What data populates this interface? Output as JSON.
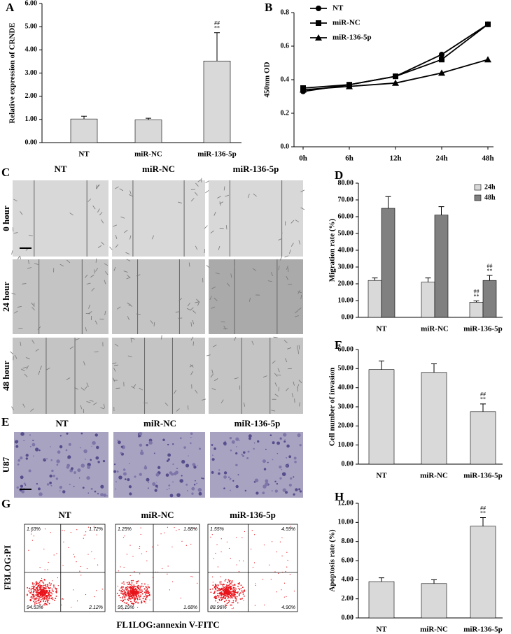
{
  "chart_data": [
    {
      "type": "bar",
      "panel": "A",
      "y_label": "Relative expression of CRNDE",
      "categories": [
        "NT",
        "miR-NC",
        "miR-136-5p"
      ],
      "series": [
        {
          "color": "#d9d9d9",
          "values": [
            1.02,
            0.98,
            3.52
          ],
          "errors": [
            0.12,
            0.07,
            1.22
          ],
          "marks": [
            null,
            null,
            [
              "##",
              "**"
            ]
          ]
        }
      ],
      "ylim": [
        0,
        6
      ],
      "yticks": [
        {
          "value": 0,
          "label": "0.00"
        },
        {
          "value": 1,
          "label": "1.00"
        },
        {
          "value": 2,
          "label": "2.00"
        },
        {
          "value": 3,
          "label": "3.00"
        },
        {
          "value": 4,
          "label": "4.00"
        },
        {
          "value": 5,
          "label": "5.00"
        },
        {
          "value": 6,
          "label": "6.00"
        }
      ]
    },
    {
      "type": "line",
      "panel": "B",
      "y_label": "450nm OD",
      "categories": [
        "0h",
        "6h",
        "12h",
        "24h",
        "48h"
      ],
      "series": [
        {
          "name": "NT",
          "color": "#000000",
          "marker": "circle",
          "values": [
            0.33,
            0.37,
            0.42,
            0.55,
            0.73
          ]
        },
        {
          "name": "miR-NC",
          "color": "#000000",
          "marker": "square",
          "values": [
            0.35,
            0.37,
            0.42,
            0.52,
            0.73
          ]
        },
        {
          "name": "miR-136-5p",
          "color": "#000000",
          "marker": "triangle",
          "values": [
            0.34,
            0.36,
            0.38,
            0.44,
            0.52
          ]
        }
      ],
      "ylim": [
        0,
        0.8
      ],
      "yticks": [
        {
          "value": 0,
          "label": "0.0"
        },
        0.2,
        0.4,
        0.6,
        0.8
      ],
      "legend": "upper left"
    },
    {
      "type": "bar",
      "panel": "D",
      "y_label": "Migration rate (%)",
      "categories": [
        "NT",
        "miR-NC",
        "miR-136-5p"
      ],
      "series": [
        {
          "name": "24h",
          "color": "#d9d9d9",
          "values": [
            22,
            21,
            9
          ],
          "errors": [
            1.5,
            2.5,
            0.8
          ],
          "marks": [
            null,
            null,
            [
              "##",
              "**"
            ]
          ]
        },
        {
          "name": "48h",
          "color": "#808080",
          "values": [
            65,
            61,
            22
          ],
          "errors": [
            7,
            5,
            3
          ],
          "marks": [
            null,
            null,
            [
              "##",
              "**"
            ]
          ]
        }
      ],
      "ylim": [
        0,
        80
      ],
      "yticks": [
        {
          "value": 0,
          "label": "0.00"
        },
        {
          "value": 10,
          "label": "10.00"
        },
        {
          "value": 20,
          "label": "20.00"
        },
        {
          "value": 30,
          "label": "30.00"
        },
        {
          "value": 40,
          "label": "40.00"
        },
        {
          "value": 50,
          "label": "50.00"
        },
        {
          "value": 60,
          "label": "60.00"
        },
        {
          "value": 70,
          "label": "70.00"
        },
        {
          "value": 80,
          "label": "80.00"
        }
      ],
      "legend": "upper right"
    },
    {
      "type": "bar",
      "panel": "F",
      "y_label": "Cell number of  invasion",
      "categories": [
        "NT",
        "miR-NC",
        "miR-136-5p"
      ],
      "series": [
        {
          "color": "#d9d9d9",
          "values": [
            49.5,
            48,
            27.5
          ],
          "errors": [
            4.5,
            4.5,
            4
          ],
          "marks": [
            null,
            null,
            [
              "##",
              "**"
            ]
          ]
        }
      ],
      "ylim": [
        0,
        60
      ],
      "yticks": [
        {
          "value": 0,
          "label": "0.00"
        },
        {
          "value": 10,
          "label": "10.00"
        },
        {
          "value": 20,
          "label": "20.00"
        },
        {
          "value": 30,
          "label": "30.00"
        },
        {
          "value": 40,
          "label": "40.00"
        },
        {
          "value": 50,
          "label": "50.00"
        },
        {
          "value": 60,
          "label": "60.00"
        }
      ]
    },
    {
      "type": "bar",
      "panel": "H",
      "y_label": "Apoptosis rate (%)",
      "categories": [
        "NT",
        "miR-NC",
        "miR-136-5p"
      ],
      "series": [
        {
          "color": "#d9d9d9",
          "values": [
            3.8,
            3.6,
            9.6
          ],
          "errors": [
            0.4,
            0.4,
            0.9
          ],
          "marks": [
            null,
            null,
            [
              "##",
              "**"
            ]
          ]
        }
      ],
      "ylim": [
        0,
        12
      ],
      "yticks": [
        {
          "value": 0,
          "label": "0.00"
        },
        {
          "value": 2,
          "label": "2.00"
        },
        {
          "value": 4,
          "label": "4.00"
        },
        {
          "value": 6,
          "label": "6.00"
        },
        {
          "value": 8,
          "label": "8.00"
        },
        {
          "value": 10,
          "label": "10.00"
        },
        {
          "value": 12,
          "label": "12.00"
        }
      ]
    }
  ],
  "panels": {
    "C": {
      "letter": "C",
      "columns": [
        "NT",
        "miR-NC",
        "miR-136-5p"
      ],
      "rows": [
        "0 hour",
        "24 hour",
        "48 hour"
      ]
    },
    "E": {
      "letter": "E",
      "columns": [
        "NT",
        "miR-NC",
        "miR-136-5p"
      ],
      "row": "U87"
    },
    "G": {
      "letter": "G",
      "columns": [
        "NT",
        "miR-NC",
        "miR-136-5p"
      ],
      "y_label": "Fl3LOG:PI",
      "x_label": "FL1LOG:annexin V-FITC",
      "quadrants": [
        [
          "1.63%",
          "1.72%",
          "94.53%",
          "2.12%"
        ],
        [
          "1.25%",
          "1.88%",
          "95.19%",
          "1.68%"
        ],
        [
          "1.55%",
          "4.59%",
          "88.96%",
          "4.90%"
        ]
      ]
    }
  }
}
